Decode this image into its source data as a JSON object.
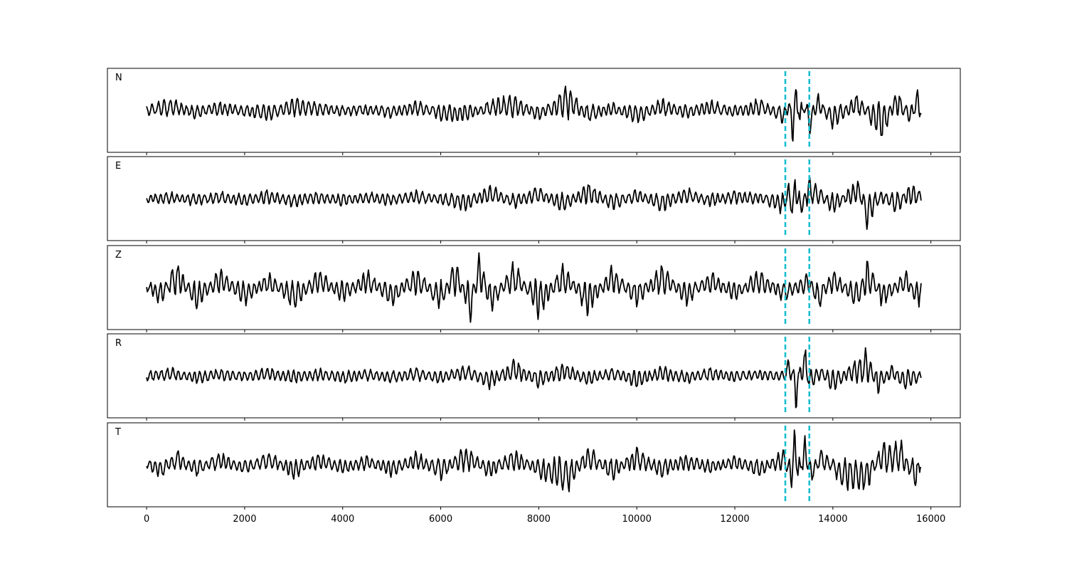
{
  "chart_data": {
    "type": "line",
    "xlim": [
      -800,
      16600
    ],
    "xticks": [
      0,
      2000,
      4000,
      6000,
      8000,
      10000,
      12000,
      14000,
      16000
    ],
    "x_range": [
      0,
      15800
    ],
    "grid": false,
    "legend": "none",
    "colors": {
      "trace": "#000000",
      "marker": "#17becf",
      "frame": "#000000"
    },
    "markers": [
      13030,
      13520
    ],
    "panels": [
      {
        "label": "N",
        "trace": [
          [
            0,
            0.05
          ],
          [
            500,
            0.2
          ],
          [
            1000,
            -0.1
          ],
          [
            1500,
            0.12
          ],
          [
            2000,
            -0.05
          ],
          [
            2500,
            -0.15
          ],
          [
            3000,
            0.2
          ],
          [
            3500,
            0.1
          ],
          [
            4000,
            -0.05
          ],
          [
            4500,
            0.05
          ],
          [
            5000,
            -0.1
          ],
          [
            5500,
            0.15
          ],
          [
            6000,
            -0.15
          ],
          [
            6500,
            -0.2
          ],
          [
            7000,
            0.15
          ],
          [
            7500,
            0.3
          ],
          [
            8000,
            -0.2
          ],
          [
            8600,
            0.55
          ],
          [
            9000,
            -0.2
          ],
          [
            9500,
            0.1
          ],
          [
            10000,
            -0.25
          ],
          [
            10500,
            0.2
          ],
          [
            11000,
            -0.1
          ],
          [
            11500,
            0.15
          ],
          [
            12000,
            -0.05
          ],
          [
            12500,
            0.2
          ],
          [
            13000,
            -0.25
          ],
          [
            13100,
            0.35
          ],
          [
            13180,
            -0.8
          ],
          [
            13260,
            1.0
          ],
          [
            13340,
            -0.7
          ],
          [
            13420,
            0.5
          ],
          [
            13500,
            -0.6
          ],
          [
            13700,
            0.3
          ],
          [
            14000,
            -0.4
          ],
          [
            14500,
            0.35
          ],
          [
            15000,
            -0.7
          ],
          [
            15300,
            0.45
          ],
          [
            15600,
            -0.3
          ],
          [
            15750,
            0.6
          ],
          [
            15800,
            -0.25
          ]
        ]
      },
      {
        "label": "E",
        "trace": [
          [
            0,
            0.0
          ],
          [
            500,
            0.05
          ],
          [
            1000,
            -0.08
          ],
          [
            1500,
            0.08
          ],
          [
            2000,
            -0.1
          ],
          [
            2500,
            0.12
          ],
          [
            3000,
            -0.12
          ],
          [
            3500,
            0.08
          ],
          [
            4000,
            -0.1
          ],
          [
            4500,
            0.06
          ],
          [
            5000,
            -0.08
          ],
          [
            5500,
            0.1
          ],
          [
            6000,
            -0.05
          ],
          [
            6500,
            -0.2
          ],
          [
            7000,
            0.25
          ],
          [
            7500,
            -0.15
          ],
          [
            8000,
            0.2
          ],
          [
            8500,
            -0.25
          ],
          [
            9000,
            0.3
          ],
          [
            9500,
            -0.2
          ],
          [
            10000,
            0.15
          ],
          [
            10500,
            -0.25
          ],
          [
            11000,
            0.2
          ],
          [
            11500,
            -0.1
          ],
          [
            12000,
            0.1
          ],
          [
            12500,
            0.05
          ],
          [
            13000,
            -0.3
          ],
          [
            13100,
            0.3
          ],
          [
            13180,
            -0.6
          ],
          [
            13240,
            1.0
          ],
          [
            13300,
            -0.4
          ],
          [
            13400,
            -0.2
          ],
          [
            13500,
            0.5
          ],
          [
            13700,
            0.2
          ],
          [
            14000,
            -0.3
          ],
          [
            14500,
            0.4
          ],
          [
            14700,
            -0.65
          ],
          [
            15000,
            0.15
          ],
          [
            15300,
            -0.3
          ],
          [
            15600,
            0.35
          ],
          [
            15800,
            0.05
          ]
        ]
      },
      {
        "label": "Z",
        "trace": [
          [
            0,
            0.1
          ],
          [
            300,
            -0.4
          ],
          [
            600,
            0.6
          ],
          [
            1000,
            -0.5
          ],
          [
            1500,
            0.4
          ],
          [
            2000,
            -0.35
          ],
          [
            2500,
            0.3
          ],
          [
            3000,
            -0.5
          ],
          [
            3500,
            0.4
          ],
          [
            4000,
            -0.3
          ],
          [
            4500,
            0.35
          ],
          [
            5000,
            -0.4
          ],
          [
            5500,
            0.45
          ],
          [
            6000,
            -0.5
          ],
          [
            6300,
            0.7
          ],
          [
            6600,
            -0.8
          ],
          [
            6800,
            0.9
          ],
          [
            7000,
            -0.6
          ],
          [
            7500,
            0.6
          ],
          [
            8000,
            -0.7
          ],
          [
            8500,
            0.55
          ],
          [
            9000,
            -0.6
          ],
          [
            9500,
            0.5
          ],
          [
            10000,
            -0.45
          ],
          [
            10500,
            0.55
          ],
          [
            11000,
            -0.4
          ],
          [
            11500,
            0.35
          ],
          [
            12000,
            -0.3
          ],
          [
            12500,
            0.4
          ],
          [
            13000,
            -0.3
          ],
          [
            13500,
            0.35
          ],
          [
            13700,
            -0.55
          ],
          [
            14000,
            0.4
          ],
          [
            14500,
            -0.5
          ],
          [
            14700,
            0.7
          ],
          [
            15000,
            -0.4
          ],
          [
            15500,
            0.35
          ],
          [
            15750,
            -0.55
          ],
          [
            15800,
            0.3
          ]
        ]
      },
      {
        "label": "R",
        "trace": [
          [
            0,
            0.0
          ],
          [
            500,
            0.1
          ],
          [
            1000,
            -0.1
          ],
          [
            1500,
            0.08
          ],
          [
            2000,
            -0.05
          ],
          [
            2500,
            0.12
          ],
          [
            3000,
            -0.1
          ],
          [
            3500,
            0.08
          ],
          [
            4000,
            -0.1
          ],
          [
            4500,
            0.06
          ],
          [
            5000,
            -0.08
          ],
          [
            5500,
            0.1
          ],
          [
            6000,
            -0.1
          ],
          [
            6500,
            0.2
          ],
          [
            7000,
            -0.25
          ],
          [
            7500,
            0.3
          ],
          [
            8000,
            -0.2
          ],
          [
            8500,
            0.25
          ],
          [
            9000,
            -0.15
          ],
          [
            9500,
            0.1
          ],
          [
            10000,
            -0.2
          ],
          [
            10500,
            0.15
          ],
          [
            11000,
            -0.1
          ],
          [
            11500,
            0.1
          ],
          [
            12000,
            -0.05
          ],
          [
            12500,
            0.05
          ],
          [
            13000,
            0.0
          ],
          [
            13150,
            0.55
          ],
          [
            13250,
            -0.8
          ],
          [
            13350,
            0.45
          ],
          [
            13450,
            0.6
          ],
          [
            13520,
            -0.45
          ],
          [
            13700,
            0.2
          ],
          [
            14000,
            -0.3
          ],
          [
            14500,
            0.35
          ],
          [
            14700,
            0.6
          ],
          [
            14900,
            -0.4
          ],
          [
            15200,
            0.2
          ],
          [
            15500,
            -0.3
          ],
          [
            15800,
            0.05
          ]
        ]
      },
      {
        "label": "T",
        "trace": [
          [
            0,
            0.05
          ],
          [
            300,
            -0.25
          ],
          [
            600,
            0.3
          ],
          [
            1000,
            -0.2
          ],
          [
            1500,
            0.2
          ],
          [
            2000,
            -0.15
          ],
          [
            2500,
            0.25
          ],
          [
            3000,
            -0.25
          ],
          [
            3500,
            0.2
          ],
          [
            4000,
            -0.15
          ],
          [
            4500,
            0.15
          ],
          [
            5000,
            -0.2
          ],
          [
            5500,
            0.25
          ],
          [
            6000,
            -0.3
          ],
          [
            6500,
            0.4
          ],
          [
            7000,
            -0.25
          ],
          [
            7500,
            0.3
          ],
          [
            8000,
            -0.2
          ],
          [
            8600,
            -0.65
          ],
          [
            9000,
            0.4
          ],
          [
            9500,
            -0.3
          ],
          [
            10000,
            0.35
          ],
          [
            10500,
            -0.25
          ],
          [
            11000,
            0.2
          ],
          [
            11500,
            -0.15
          ],
          [
            12000,
            0.15
          ],
          [
            12500,
            -0.2
          ],
          [
            13000,
            0.3
          ],
          [
            13150,
            -0.7
          ],
          [
            13220,
            0.95
          ],
          [
            13300,
            -0.6
          ],
          [
            13420,
            0.7
          ],
          [
            13550,
            -0.4
          ],
          [
            13800,
            0.35
          ],
          [
            14200,
            -0.5
          ],
          [
            14700,
            -0.55
          ],
          [
            15000,
            0.45
          ],
          [
            15400,
            0.5
          ],
          [
            15600,
            -0.3
          ],
          [
            15750,
            -0.7
          ],
          [
            15800,
            0.3
          ]
        ]
      }
    ]
  }
}
